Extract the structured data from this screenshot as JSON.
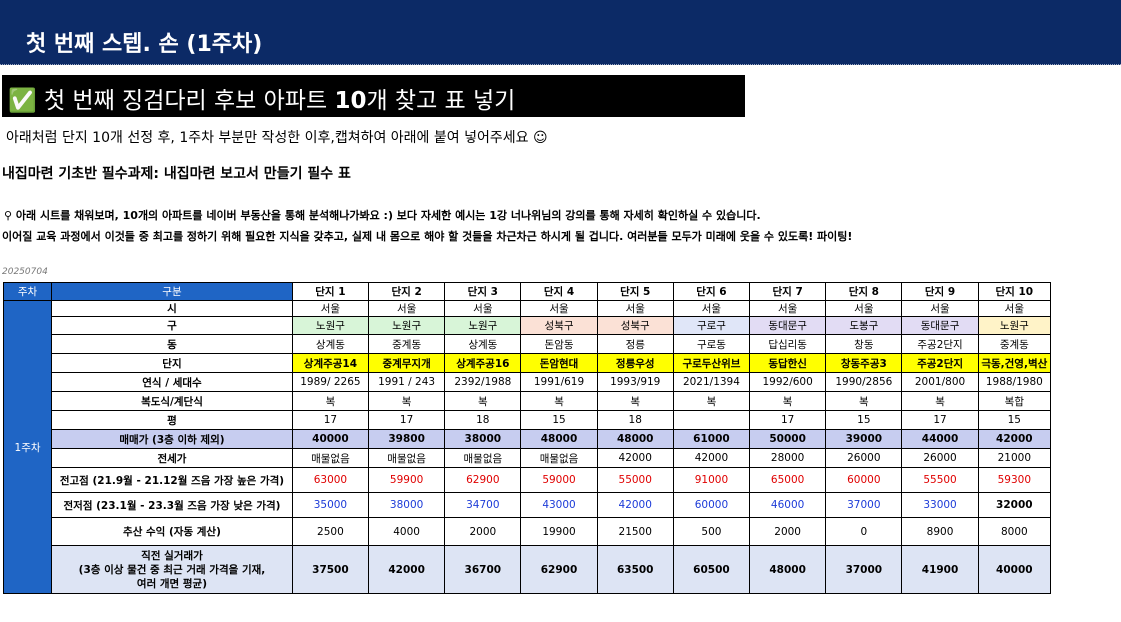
{
  "slide": {
    "title": "첫 번째 스텝. 손 (1주차)",
    "banner": {
      "icon": "✅",
      "prefix": " 첫 번째 징검다리 후보 아파트 ",
      "bold": "10",
      "suffix": "개 찾고 표 넣기"
    },
    "instruction": "아래처럼 단지 10개 선정 후, 1주차 부분만 작성한 이후,캡쳐하여 아래에 붙여 넣어주세요 ☺",
    "heading": "내집마련 기초반 필수과제:  내집마련 보고서 만들기 필수 표",
    "note1": "⚲ 아래 시트를 채워보며, 10개의 아파트를 네이버 부동산을 통해 분석해나가봐요 :) 보다 자세한 예시는 1강 너나위님의 강의를 통해 자세히 확인하실 수 있습니다.",
    "note2": "이어질 교육 과정에서 이것들 중 최고를 정하기 위해 필요한 지식을 갖추고, 실제 내 몸으로 해야 할 것들을 차근차근 하시게 될 겁니다. 여러분들 모두가 미래에 웃을 수 있도록! 파이팅!",
    "date": "20250704"
  },
  "table": {
    "week_header": "주차",
    "category_header": "구분",
    "complex_headers": [
      "단지 1",
      "단지 2",
      "단지 3",
      "단지 4",
      "단지 5",
      "단지 6",
      "단지 7",
      "단지 8",
      "단지 9",
      "단지 10"
    ],
    "week_label": "1주차",
    "rows": [
      {
        "label": "시",
        "values": [
          "서울",
          "서울",
          "서울",
          "서울",
          "서울",
          "서울",
          "서울",
          "서울",
          "서울",
          "서울"
        ]
      },
      {
        "label": "구",
        "values": [
          "노원구",
          "노원구",
          "노원구",
          "성북구",
          "성북구",
          "구로구",
          "동대문구",
          "도봉구",
          "동대문구",
          "노원구"
        ]
      },
      {
        "label": "동",
        "values": [
          "상계동",
          "중계동",
          "상계동",
          "돈암동",
          "정릉",
          "구로동",
          "답십리동",
          "창동",
          "주공2단지",
          "중계동"
        ]
      },
      {
        "label": "단지",
        "values": [
          "상계주공14",
          "중계무지개",
          "상계주공16",
          "돈암현대",
          "정릉우성",
          "구로두산위브",
          "동답한신",
          "창동주공3",
          "주공2단지",
          "극동,건영,벽산"
        ]
      },
      {
        "label": "연식 / 세대수",
        "values": [
          "1989/ 2265",
          "1991 / 243",
          "2392/1988",
          "1991/619",
          "1993/919",
          "2021/1394",
          "1992/600",
          "1990/2856",
          "2001/800",
          "1988/1980"
        ]
      },
      {
        "label": "복도식/계단식",
        "values": [
          "복",
          "복",
          "복",
          "복",
          "복",
          "복",
          "복",
          "복",
          "복",
          "복합"
        ]
      },
      {
        "label": "평",
        "values": [
          "17",
          "17",
          "18",
          "15",
          "18",
          "",
          "17",
          "15",
          "17",
          "15"
        ]
      },
      {
        "label": "매매가 (3층 이하 제외)",
        "values": [
          "40000",
          "39800",
          "38000",
          "48000",
          "48000",
          "61000",
          "50000",
          "39000",
          "44000",
          "42000"
        ]
      },
      {
        "label": "전세가",
        "values": [
          "매물없음",
          "매물없음",
          "매물없음",
          "매물없음",
          "42000",
          "42000",
          "28000",
          "26000",
          "26000",
          "21000"
        ]
      },
      {
        "label": "전고점 (21.9월 - 21.12월 즈음 가장 높은 가격)",
        "values": [
          "63000",
          "59900",
          "62900",
          "59000",
          "55000",
          "91000",
          "65000",
          "60000",
          "55500",
          "59300"
        ]
      },
      {
        "label": "전저점 (23.1월 - 23.3월 즈음 가장 낮은 가격)",
        "values": [
          "35000",
          "38000",
          "34700",
          "43000",
          "42000",
          "60000",
          "46000",
          "37000",
          "33000",
          "32000"
        ]
      },
      {
        "label": "추산 수익 (자동 계산)",
        "values": [
          "2500",
          "4000",
          "2000",
          "19900",
          "21500",
          "500",
          "2000",
          "0",
          "8900",
          "8000"
        ]
      },
      {
        "label_lines": [
          "직전 실거래가",
          "(3층 이상 물건 중 최근 거래 가격을 기재,",
          "여러 개면 평균)"
        ],
        "values": [
          "37500",
          "42000",
          "36700",
          "62900",
          "63500",
          "60500",
          "48000",
          "37000",
          "41900",
          "40000"
        ]
      }
    ]
  },
  "colors": {
    "topbar": "#0c2a66",
    "header_blue": "#1f65c5",
    "highlight_row": "#c7cdf0",
    "yellow": "#ffff00",
    "red_text": "#e00000",
    "blue_text": "#1c3bd8"
  }
}
